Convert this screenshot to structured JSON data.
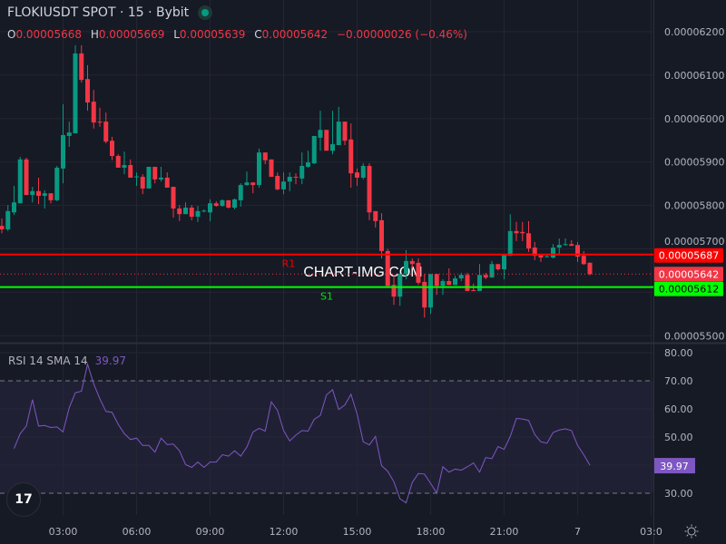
{
  "header": {
    "title": "FLOKIUSDT SPOT · 15 · Bybit",
    "status": "market-open",
    "ohlc": {
      "o_label": "O",
      "o": "0.00005668",
      "h_label": "H",
      "h": "0.00005669",
      "l_label": "L",
      "l": "0.00005639",
      "c_label": "C",
      "c": "0.00005642",
      "change": "−0.00000026 (−0.46%)"
    }
  },
  "watermark": "CHART-IMG.COM",
  "colors": {
    "background": "#161a25",
    "up": "#089981",
    "down": "#f23645",
    "r1": "#ff0000",
    "s1": "#00ff00",
    "rsi": "#7e57c2",
    "grid": "#232632"
  },
  "rsi_panel": {
    "label": "RSI 14 SMA 14",
    "value": "39.97"
  },
  "chart_data": [
    {
      "type": "candlestick",
      "title": "FLOKIUSDT SPOT · 15 · Bybit",
      "interval": "15",
      "y_ticks": [
        "0.00006200",
        "0.00006100",
        "0.00006000",
        "0.00005900",
        "0.00005800",
        "0.00005700",
        "0.00005500"
      ],
      "ylim": [
        5.47e-05,
        6.27e-05
      ],
      "x_ticks": [
        "03:00",
        "06:00",
        "09:00",
        "12:00",
        "15:00",
        "18:00",
        "21:00",
        "7",
        "03:0"
      ],
      "grid": true,
      "levels": [
        {
          "name": "R1",
          "value": 5.687e-05,
          "label": "0.00005687",
          "color": "#ff0000"
        },
        {
          "name": "S1",
          "value": 5.612e-05,
          "label": "0.00005612",
          "color": "#00ff00"
        }
      ],
      "last_price": {
        "value": 5.642e-05,
        "label": "0.00005642"
      },
      "candles_ohlc": [
        [
          5.753e-05,
          5.77e-05,
          5.736e-05,
          5.745e-05
        ],
        [
          5.745e-05,
          5.801e-05,
          5.741e-05,
          5.787e-05
        ],
        [
          5.784e-05,
          5.845e-05,
          5.778e-05,
          5.807e-05
        ],
        [
          5.805e-05,
          5.912e-05,
          5.805e-05,
          5.906e-05
        ],
        [
          5.906e-05,
          5.91e-05,
          5.824e-05,
          5.824e-05
        ],
        [
          5.824e-05,
          5.843e-05,
          5.807e-05,
          5.833e-05
        ],
        [
          5.833e-05,
          5.864e-05,
          5.803e-05,
          5.822e-05
        ],
        [
          5.822e-05,
          5.835e-05,
          5.793e-05,
          5.828e-05
        ],
        [
          5.828e-05,
          5.828e-05,
          5.805e-05,
          5.812e-05
        ],
        [
          5.812e-05,
          5.891e-05,
          5.81e-05,
          5.887e-05
        ],
        [
          5.885e-05,
          6.033e-05,
          5.851e-05,
          5.962e-05
        ],
        [
          5.96e-05,
          5.993e-05,
          5.935e-05,
          5.968e-05
        ],
        [
          5.966e-05,
          6.169e-05,
          5.966e-05,
          6.15e-05
        ],
        [
          6.15e-05,
          6.169e-05,
          6.083e-05,
          6.089e-05
        ],
        [
          6.091e-05,
          6.123e-05,
          6.018e-05,
          6.037e-05
        ],
        [
          6.039e-05,
          6.066e-05,
          5.977e-05,
          5.991e-05
        ],
        [
          5.993e-05,
          6.025e-05,
          5.981e-05,
          5.991e-05
        ],
        [
          5.993e-05,
          6.014e-05,
          5.943e-05,
          5.947e-05
        ],
        [
          5.949e-05,
          5.958e-05,
          5.904e-05,
          5.914e-05
        ],
        [
          5.914e-05,
          5.918e-05,
          5.887e-05,
          5.887e-05
        ],
        [
          5.887e-05,
          5.924e-05,
          5.872e-05,
          5.893e-05
        ],
        [
          5.893e-05,
          5.906e-05,
          5.864e-05,
          5.864e-05
        ],
        [
          5.866e-05,
          5.876e-05,
          5.845e-05,
          5.867e-05
        ],
        [
          5.866e-05,
          5.872e-05,
          5.826e-05,
          5.839e-05
        ],
        [
          5.839e-05,
          5.889e-05,
          5.839e-05,
          5.889e-05
        ],
        [
          5.889e-05,
          5.889e-05,
          5.851e-05,
          5.86e-05
        ],
        [
          5.86e-05,
          5.889e-05,
          5.855e-05,
          5.864e-05
        ],
        [
          5.864e-05,
          5.876e-05,
          5.841e-05,
          5.841e-05
        ],
        [
          5.843e-05,
          5.843e-05,
          5.772e-05,
          5.793e-05
        ],
        [
          5.793e-05,
          5.801e-05,
          5.764e-05,
          5.78e-05
        ],
        [
          5.78e-05,
          5.807e-05,
          5.78e-05,
          5.795e-05
        ],
        [
          5.795e-05,
          5.801e-05,
          5.766e-05,
          5.774e-05
        ],
        [
          5.774e-05,
          5.799e-05,
          5.762e-05,
          5.787e-05
        ],
        [
          5.787e-05,
          5.791e-05,
          5.784e-05,
          5.788e-05
        ],
        [
          5.784e-05,
          5.814e-05,
          5.764e-05,
          5.805e-05
        ],
        [
          5.805e-05,
          5.81e-05,
          5.797e-05,
          5.799e-05
        ],
        [
          5.799e-05,
          5.814e-05,
          5.797e-05,
          5.812e-05
        ],
        [
          5.812e-05,
          5.812e-05,
          5.793e-05,
          5.795e-05
        ],
        [
          5.795e-05,
          5.816e-05,
          5.791e-05,
          5.814e-05
        ],
        [
          5.812e-05,
          5.851e-05,
          5.797e-05,
          5.847e-05
        ],
        [
          5.847e-05,
          5.878e-05,
          5.845e-05,
          5.853e-05
        ],
        [
          5.853e-05,
          5.853e-05,
          5.828e-05,
          5.847e-05
        ],
        [
          5.847e-05,
          5.931e-05,
          5.841e-05,
          5.922e-05
        ],
        [
          5.922e-05,
          5.922e-05,
          5.895e-05,
          5.904e-05
        ],
        [
          5.906e-05,
          5.906e-05,
          5.866e-05,
          5.866e-05
        ],
        [
          5.868e-05,
          5.876e-05,
          5.835e-05,
          5.837e-05
        ],
        [
          5.837e-05,
          5.876e-05,
          5.826e-05,
          5.855e-05
        ],
        [
          5.855e-05,
          5.876e-05,
          5.833e-05,
          5.866e-05
        ],
        [
          5.866e-05,
          5.874e-05,
          5.849e-05,
          5.864e-05
        ],
        [
          5.862e-05,
          5.922e-05,
          5.849e-05,
          5.891e-05
        ],
        [
          5.889e-05,
          5.926e-05,
          5.887e-05,
          5.899e-05
        ],
        [
          5.897e-05,
          5.96e-05,
          5.895e-05,
          5.96e-05
        ],
        [
          5.956e-05,
          6.018e-05,
          5.926e-05,
          5.974e-05
        ],
        [
          5.974e-05,
          5.974e-05,
          5.926e-05,
          5.926e-05
        ],
        [
          5.926e-05,
          6.018e-05,
          5.918e-05,
          5.941e-05
        ],
        [
          5.939e-05,
          6.027e-05,
          5.939e-05,
          5.993e-05
        ],
        [
          5.993e-05,
          5.993e-05,
          5.939e-05,
          5.949e-05
        ],
        [
          5.952e-05,
          5.989e-05,
          5.841e-05,
          5.874e-05
        ],
        [
          5.876e-05,
          5.885e-05,
          5.845e-05,
          5.864e-05
        ],
        [
          5.864e-05,
          5.897e-05,
          5.86e-05,
          5.891e-05
        ],
        [
          5.891e-05,
          5.897e-05,
          5.766e-05,
          5.784e-05
        ],
        [
          5.787e-05,
          5.787e-05,
          5.749e-05,
          5.764e-05
        ],
        [
          5.766e-05,
          5.782e-05,
          5.678e-05,
          5.695e-05
        ],
        [
          5.695e-05,
          5.7e-05,
          5.61e-05,
          5.615e-05
        ],
        [
          5.617e-05,
          5.64e-05,
          5.571e-05,
          5.59e-05
        ],
        [
          5.59e-05,
          5.645e-05,
          5.569e-05,
          5.642e-05
        ],
        [
          5.642e-05,
          5.697e-05,
          5.63e-05,
          5.672e-05
        ],
        [
          5.672e-05,
          5.678e-05,
          5.655e-05,
          5.665e-05
        ],
        [
          5.668e-05,
          5.678e-05,
          5.617e-05,
          5.622e-05
        ],
        [
          5.624e-05,
          5.642e-05,
          5.542e-05,
          5.565e-05
        ],
        [
          5.565e-05,
          5.642e-05,
          5.55e-05,
          5.642e-05
        ],
        [
          5.642e-05,
          5.642e-05,
          5.594e-05,
          5.615e-05
        ],
        [
          5.615e-05,
          5.63e-05,
          5.594e-05,
          5.626e-05
        ],
        [
          5.626e-05,
          5.655e-05,
          5.617e-05,
          5.617e-05
        ],
        [
          5.617e-05,
          5.638e-05,
          5.617e-05,
          5.632e-05
        ],
        [
          5.632e-05,
          5.645e-05,
          5.626e-05,
          5.64e-05
        ],
        [
          5.64e-05,
          5.645e-05,
          5.603e-05,
          5.603e-05
        ],
        [
          5.605e-05,
          5.62e-05,
          5.603e-05,
          5.604e-05
        ],
        [
          5.603e-05,
          5.665e-05,
          5.603e-05,
          5.64e-05
        ],
        [
          5.64e-05,
          5.645e-05,
          5.63e-05,
          5.634e-05
        ],
        [
          5.634e-05,
          5.672e-05,
          5.634e-05,
          5.665e-05
        ],
        [
          5.665e-05,
          5.665e-05,
          5.65e-05,
          5.653e-05
        ],
        [
          5.653e-05,
          5.686e-05,
          5.63e-05,
          5.686e-05
        ],
        [
          5.684e-05,
          5.78e-05,
          5.684e-05,
          5.741e-05
        ],
        [
          5.741e-05,
          5.762e-05,
          5.718e-05,
          5.736e-05
        ],
        [
          5.739e-05,
          5.762e-05,
          5.718e-05,
          5.736e-05
        ],
        [
          5.736e-05,
          5.764e-05,
          5.693e-05,
          5.701e-05
        ],
        [
          5.703e-05,
          5.716e-05,
          5.674e-05,
          5.684e-05
        ],
        [
          5.686e-05,
          5.686e-05,
          5.67e-05,
          5.68e-05
        ],
        [
          5.682e-05,
          5.686e-05,
          5.68e-05,
          5.683e-05
        ],
        [
          5.68e-05,
          5.711e-05,
          5.678e-05,
          5.703e-05
        ],
        [
          5.703e-05,
          5.724e-05,
          5.686e-05,
          5.709e-05
        ],
        [
          5.709e-05,
          5.724e-05,
          5.707e-05,
          5.711e-05
        ],
        [
          5.711e-05,
          5.72e-05,
          5.707e-05,
          5.707e-05
        ],
        [
          5.709e-05,
          5.716e-05,
          5.67e-05,
          5.682e-05
        ],
        [
          5.684e-05,
          5.695e-05,
          5.663e-05,
          5.665e-05
        ],
        [
          5.668e-05,
          5.669e-05,
          5.639e-05,
          5.642e-05
        ]
      ]
    },
    {
      "type": "line",
      "title": "RSI 14 SMA 14",
      "y_ticks": [
        "80.00",
        "70.00",
        "60.00",
        "50.00",
        "30.00"
      ],
      "ylim": [
        22,
        82
      ],
      "bands": {
        "upper": 70,
        "lower": 30
      },
      "last_value": {
        "value": 39.97,
        "label": "39.97"
      },
      "series": [
        {
          "name": "RSI",
          "values": [
            45.9,
            51.2,
            53.9,
            63.3,
            53.9,
            54.1,
            53.4,
            53.6,
            51.8,
            60.4,
            65.7,
            66.3,
            75.9,
            68.9,
            63.6,
            59.1,
            58.8,
            54.5,
            51.2,
            49.1,
            49.6,
            47.0,
            47.0,
            44.6,
            49.6,
            47.3,
            47.5,
            45.1,
            40.2,
            39.2,
            41.1,
            39.2,
            41.1,
            41.1,
            43.7,
            43.2,
            45.1,
            43.2,
            46.4,
            51.8,
            53.1,
            52.1,
            62.5,
            59.5,
            52.3,
            48.6,
            50.7,
            52.3,
            52.1,
            56.3,
            57.7,
            65.0,
            66.8,
            59.8,
            61.4,
            65.2,
            58.2,
            48.3,
            47.2,
            50.2,
            39.8,
            37.8,
            34.1,
            28.0,
            26.6,
            33.8,
            37.0,
            36.8,
            33.5,
            30.1,
            39.4,
            37.5,
            38.6,
            38.2,
            39.4,
            40.8,
            37.5,
            42.7,
            42.3,
            46.6,
            45.6,
            50.2,
            56.6,
            56.4,
            55.9,
            50.9,
            48.3,
            47.8,
            51.6,
            52.5,
            52.9,
            52.3,
            47.0,
            43.7,
            39.97
          ]
        }
      ]
    }
  ]
}
